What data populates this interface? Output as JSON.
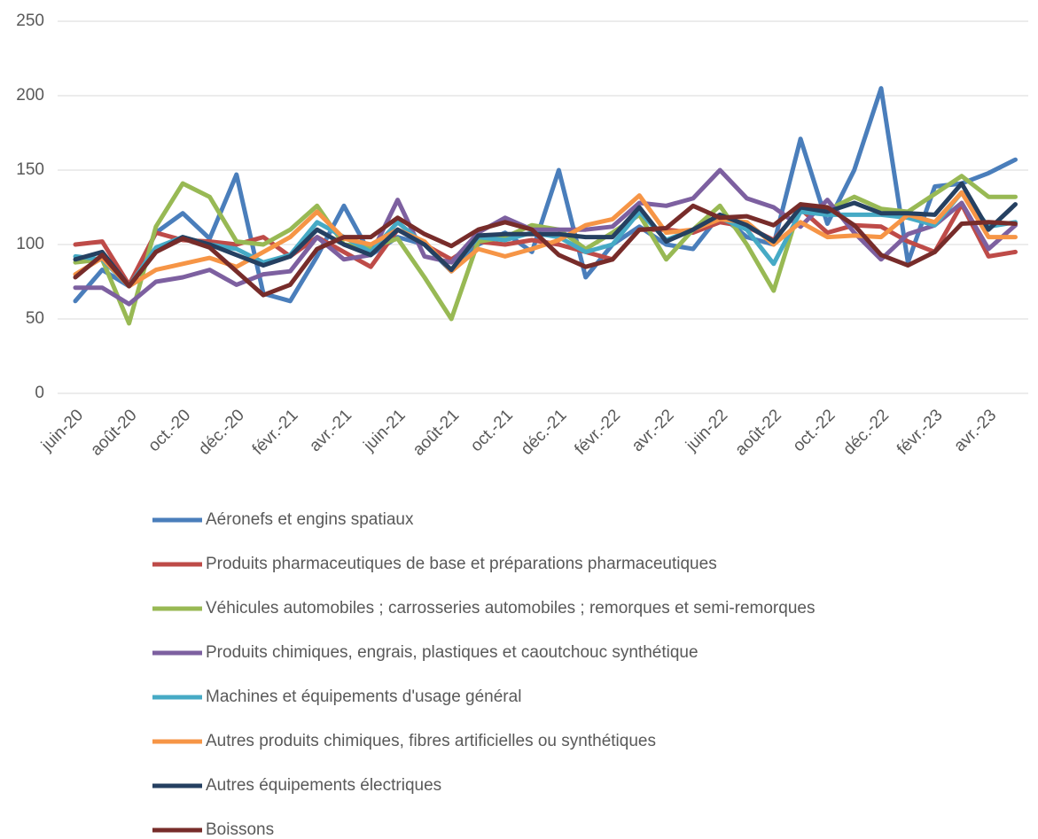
{
  "chart_data": {
    "type": "line",
    "categories": [
      "juin-20",
      null,
      "août-20",
      null,
      "oct.-20",
      null,
      "déc.-20",
      null,
      "févr.-21",
      null,
      "avr.-21",
      null,
      "juin-21",
      null,
      "août-21",
      null,
      "oct.-21",
      null,
      "déc.-21",
      null,
      "févr.-22",
      null,
      "avr.-22",
      null,
      "juin-22",
      null,
      "août-22",
      null,
      "oct.-22",
      null,
      "déc.-22",
      null,
      "févr.-23",
      null,
      "avr.-23",
      null
    ],
    "ylim": [
      0,
      250
    ],
    "yticks": [
      0,
      50,
      100,
      150,
      200,
      250
    ],
    "grid": true,
    "legend": "bottom",
    "series": [
      {
        "name": "Aéronefs et engins spatiaux",
        "color": "#4a7ebb",
        "values": [
          62,
          83,
          72,
          108,
          121,
          104,
          147,
          67,
          62,
          92,
          126,
          93,
          105,
          100,
          82,
          100,
          108,
          95,
          150,
          78,
          100,
          112,
          100,
          97,
          120,
          105,
          100,
          171,
          114,
          150,
          205,
          88,
          139,
          141,
          148,
          157
        ]
      },
      {
        "name": "Produits pharmaceutiques de base et préparations pharmaceutiques",
        "color": "#be4b48",
        "values": [
          100,
          102,
          73,
          108,
          103,
          102,
          100,
          105,
          92,
          105,
          95,
          85,
          110,
          100,
          90,
          102,
          100,
          103,
          100,
          95,
          90,
          110,
          110,
          108,
          115,
          112,
          103,
          124,
          108,
          113,
          112,
          102,
          95,
          127,
          92,
          95
        ]
      },
      {
        "name": "Véhicules automobiles ; carrosseries automobiles ; remorques et semi-remorques",
        "color": "#98b954",
        "values": [
          88,
          90,
          47,
          112,
          141,
          132,
          102,
          100,
          110,
          126,
          100,
          98,
          104,
          78,
          50,
          102,
          105,
          113,
          110,
          97,
          108,
          120,
          90,
          110,
          126,
          100,
          69,
          127,
          123,
          132,
          124,
          122,
          134,
          146,
          132,
          132
        ]
      },
      {
        "name": "Produits chimiques, engrais, plastiques et caoutchouc synthétique",
        "color": "#7d60a0",
        "values": [
          71,
          71,
          60,
          75,
          78,
          83,
          73,
          80,
          82,
          105,
          90,
          93,
          130,
          92,
          88,
          108,
          118,
          110,
          110,
          110,
          112,
          128,
          126,
          131,
          150,
          131,
          125,
          112,
          130,
          108,
          90,
          107,
          113,
          128,
          97,
          113
        ]
      },
      {
        "name": "Machines et équipements d'usage général",
        "color": "#46aac5",
        "values": [
          92,
          90,
          72,
          98,
          105,
          100,
          97,
          88,
          93,
          115,
          105,
          95,
          115,
          100,
          83,
          105,
          103,
          108,
          105,
          95,
          100,
          122,
          103,
          110,
          118,
          110,
          87,
          122,
          120,
          120,
          120,
          118,
          113,
          135,
          112,
          115
        ]
      },
      {
        "name": "Autres produits chimiques, fibres artificielles ou synthétiques",
        "color": "#f69546",
        "values": [
          80,
          91,
          72,
          83,
          87,
          91,
          85,
          95,
          105,
          122,
          104,
          100,
          110,
          102,
          82,
          97,
          92,
          97,
          103,
          113,
          117,
          133,
          108,
          110,
          117,
          115,
          100,
          115,
          105,
          106,
          105,
          120,
          115,
          135,
          105,
          105
        ]
      },
      {
        "name": "Autres équipements électriques",
        "color": "#254061",
        "values": [
          90,
          95,
          72,
          95,
          105,
          100,
          93,
          86,
          92,
          110,
          100,
          93,
          110,
          100,
          83,
          106,
          107,
          107,
          107,
          105,
          105,
          125,
          102,
          110,
          120,
          113,
          102,
          125,
          122,
          128,
          121,
          121,
          120,
          141,
          110,
          127
        ]
      },
      {
        "name": "Boissons",
        "color": "#772c2a",
        "values": [
          78,
          93,
          72,
          95,
          104,
          98,
          82,
          66,
          73,
          97,
          105,
          105,
          118,
          107,
          99,
          110,
          115,
          110,
          93,
          85,
          90,
          110,
          111,
          126,
          118,
          119,
          113,
          127,
          125,
          113,
          93,
          86,
          95,
          114,
          115,
          114
        ]
      }
    ]
  }
}
